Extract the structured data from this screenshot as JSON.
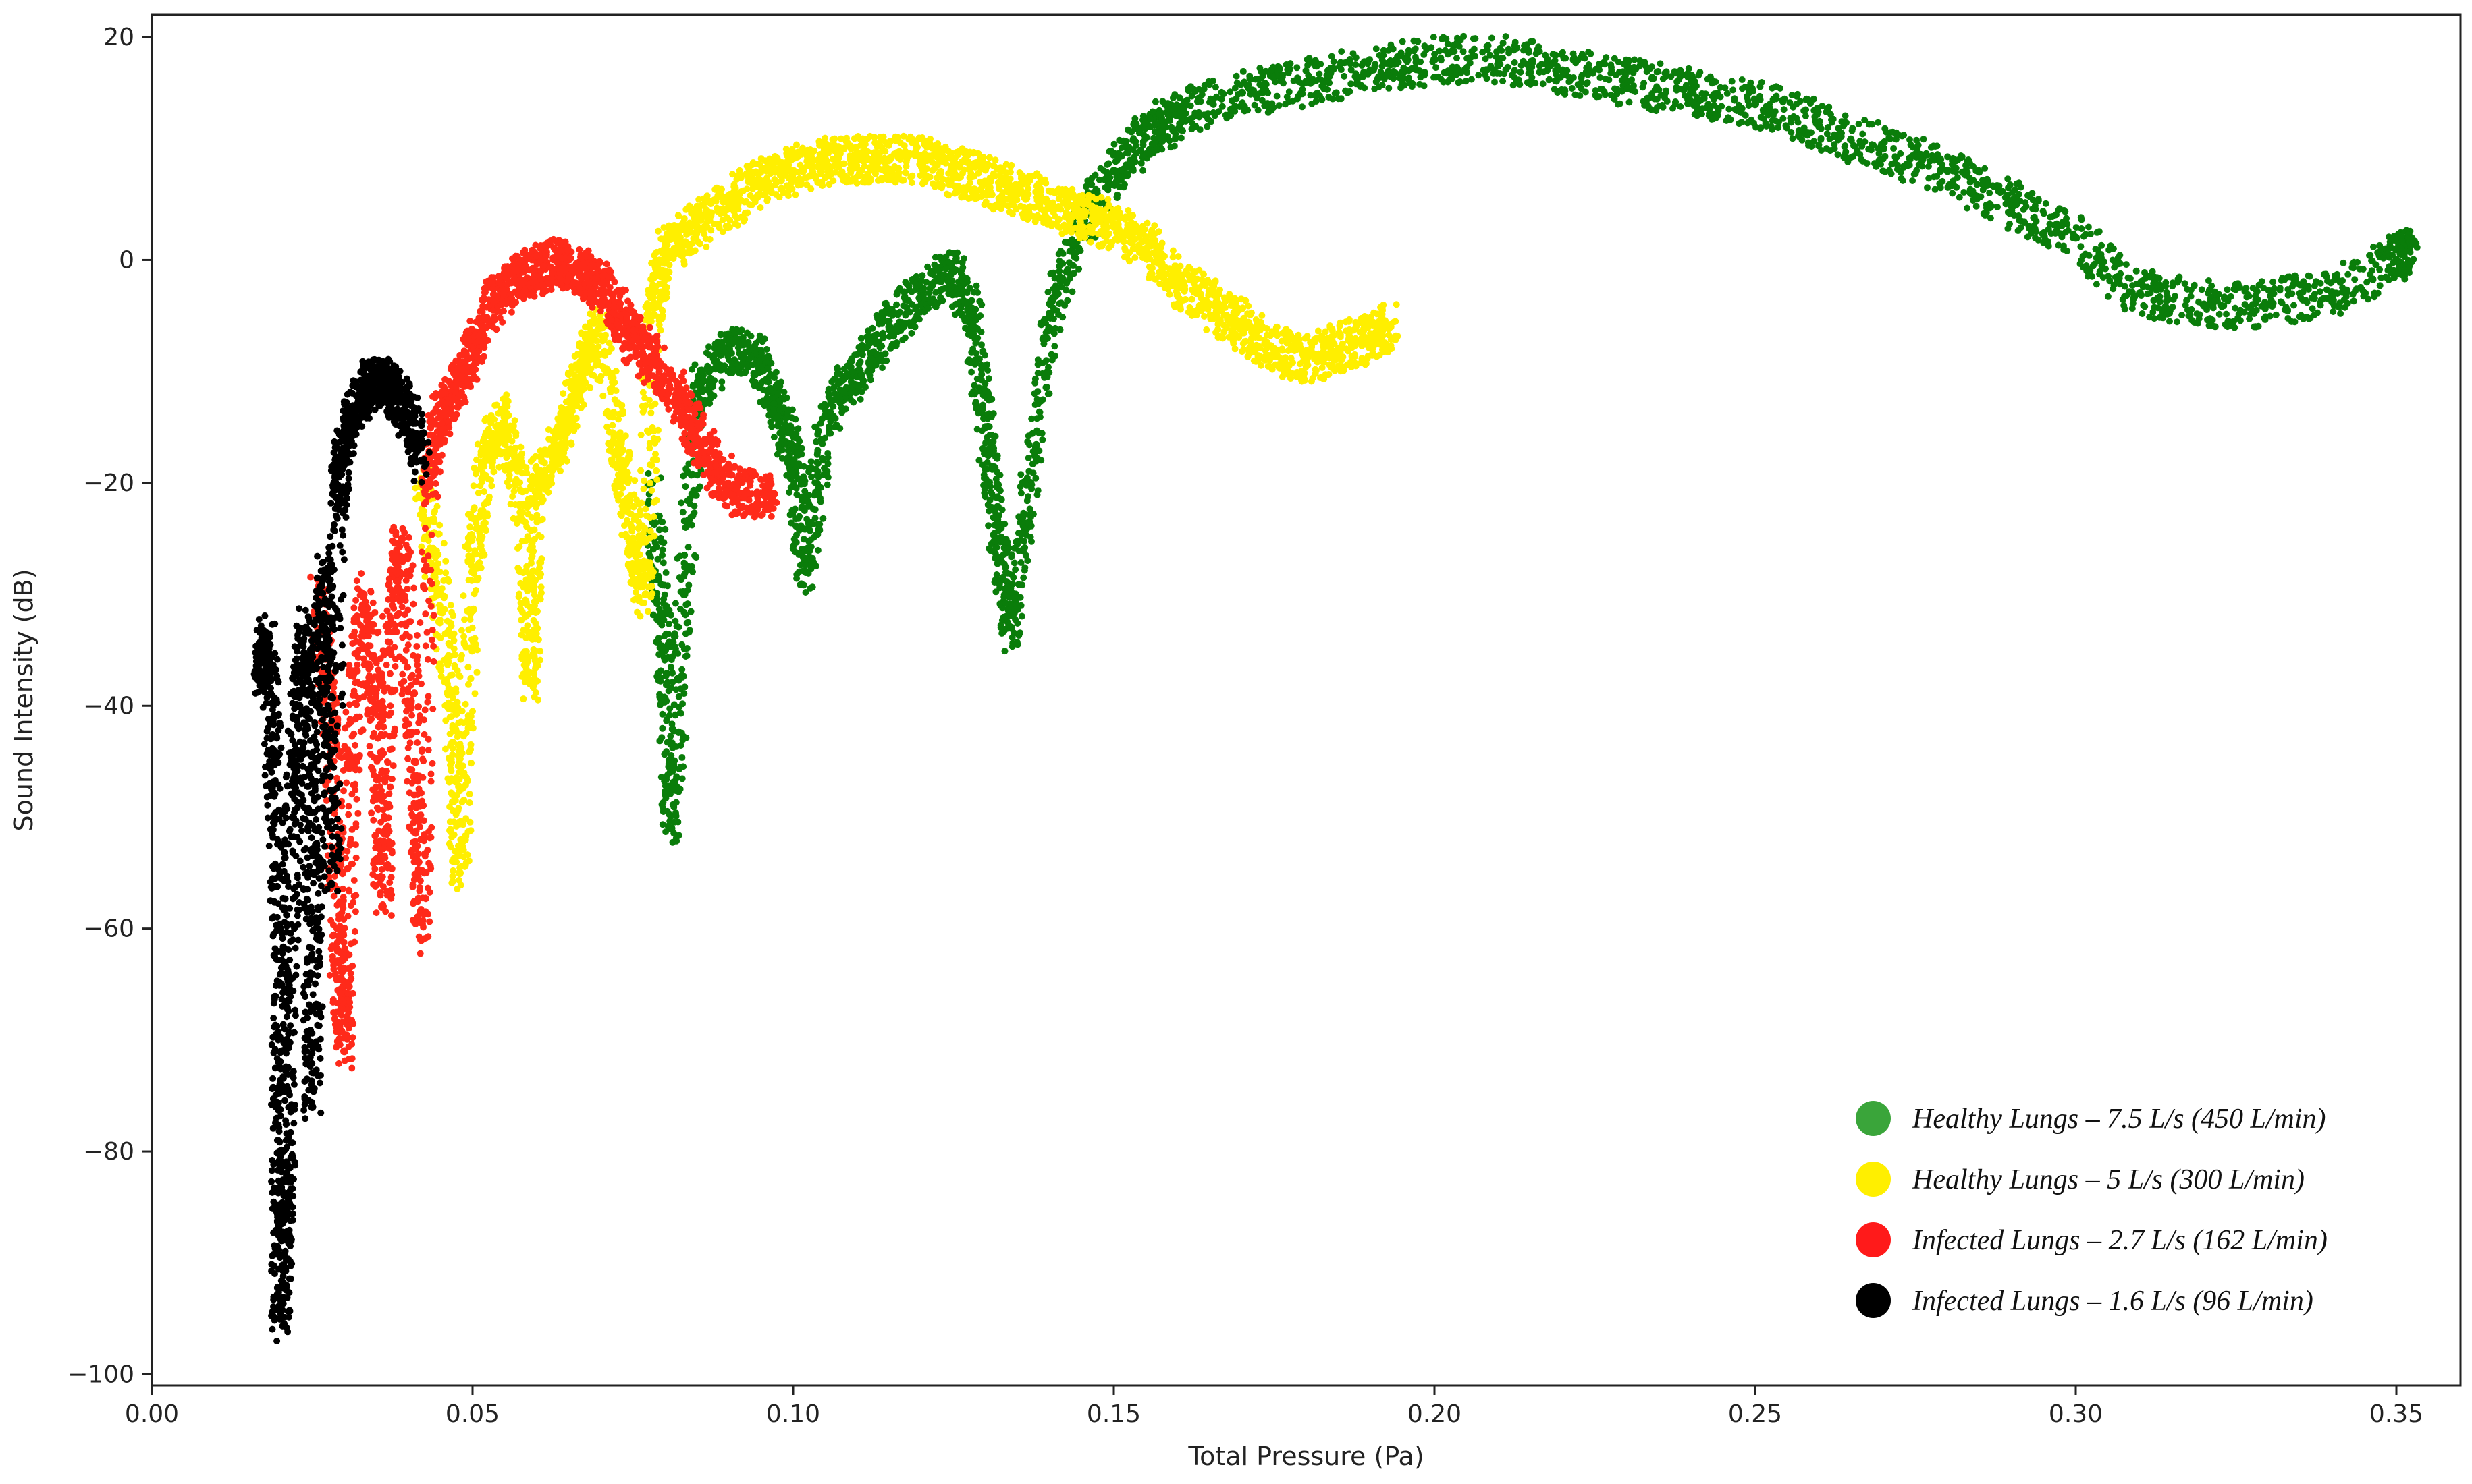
{
  "chart_data": {
    "type": "scatter",
    "title": "",
    "xlabel": "Total Pressure (Pa)",
    "ylabel": "Sound Intensity (dB)",
    "xlim": [
      0.0,
      0.36
    ],
    "ylim": [
      -101,
      22
    ],
    "x_ticks": [
      0.0,
      0.05,
      0.1,
      0.15,
      0.2,
      0.25,
      0.3,
      0.35
    ],
    "x_tick_labels": [
      "0.00",
      "0.05",
      "0.10",
      "0.15",
      "0.20",
      "0.25",
      "0.30",
      "0.35"
    ],
    "y_ticks": [
      20,
      0,
      -20,
      -40,
      -60,
      -80,
      -100
    ],
    "y_tick_labels": [
      "20",
      "0",
      "−20",
      "−40",
      "−60",
      "−80",
      "−100"
    ],
    "grid": false,
    "legend_position": "bottom-right",
    "series": [
      {
        "name": "Healthy Lungs – 7.5 L/s (450 L/min)",
        "color": "#0a7d0a",
        "legend_color": "#3aa53a",
        "points": [
          [
            0.078,
            -20
          ],
          [
            0.08,
            -35
          ],
          [
            0.081,
            -51
          ],
          [
            0.083,
            -30
          ],
          [
            0.085,
            -12
          ],
          [
            0.09,
            -8
          ],
          [
            0.095,
            -9
          ],
          [
            0.098,
            -14
          ],
          [
            0.1,
            -18
          ],
          [
            0.102,
            -28
          ],
          [
            0.105,
            -14
          ],
          [
            0.11,
            -10
          ],
          [
            0.115,
            -6
          ],
          [
            0.12,
            -3
          ],
          [
            0.125,
            -1
          ],
          [
            0.128,
            -5
          ],
          [
            0.13,
            -15
          ],
          [
            0.132,
            -25
          ],
          [
            0.134,
            -33
          ],
          [
            0.137,
            -20
          ],
          [
            0.14,
            -5
          ],
          [
            0.145,
            3
          ],
          [
            0.15,
            8
          ],
          [
            0.155,
            11
          ],
          [
            0.16,
            13
          ],
          [
            0.17,
            15
          ],
          [
            0.18,
            16
          ],
          [
            0.19,
            17
          ],
          [
            0.2,
            18
          ],
          [
            0.21,
            18
          ],
          [
            0.22,
            17
          ],
          [
            0.23,
            16
          ],
          [
            0.24,
            15
          ],
          [
            0.25,
            14
          ],
          [
            0.26,
            12
          ],
          [
            0.27,
            10
          ],
          [
            0.28,
            8
          ],
          [
            0.29,
            5
          ],
          [
            0.3,
            2
          ],
          [
            0.31,
            -3
          ],
          [
            0.32,
            -4
          ],
          [
            0.33,
            -4
          ],
          [
            0.34,
            -3
          ],
          [
            0.35,
            0
          ],
          [
            0.352,
            1
          ]
        ]
      },
      {
        "name": "Healthy Lungs – 5 L/s (300 L/min)",
        "color": "#ffef00",
        "legend_color": "#ffef00",
        "points": [
          [
            0.042,
            -20
          ],
          [
            0.045,
            -30
          ],
          [
            0.047,
            -42
          ],
          [
            0.048,
            -55
          ],
          [
            0.05,
            -28
          ],
          [
            0.052,
            -18
          ],
          [
            0.055,
            -14
          ],
          [
            0.058,
            -22
          ],
          [
            0.059,
            -38
          ],
          [
            0.06,
            -20
          ],
          [
            0.063,
            -17
          ],
          [
            0.065,
            -14
          ],
          [
            0.067,
            -10
          ],
          [
            0.07,
            -6
          ],
          [
            0.073,
            -18
          ],
          [
            0.075,
            -25
          ],
          [
            0.077,
            -30
          ],
          [
            0.078,
            -5
          ],
          [
            0.08,
            1
          ],
          [
            0.085,
            3
          ],
          [
            0.09,
            5
          ],
          [
            0.095,
            7
          ],
          [
            0.1,
            8
          ],
          [
            0.105,
            9
          ],
          [
            0.11,
            9
          ],
          [
            0.115,
            9
          ],
          [
            0.12,
            9
          ],
          [
            0.125,
            8
          ],
          [
            0.13,
            7
          ],
          [
            0.135,
            6
          ],
          [
            0.14,
            5
          ],
          [
            0.145,
            4
          ],
          [
            0.15,
            3
          ],
          [
            0.155,
            1
          ],
          [
            0.16,
            -2
          ],
          [
            0.165,
            -4
          ],
          [
            0.17,
            -6
          ],
          [
            0.175,
            -8
          ],
          [
            0.18,
            -9
          ],
          [
            0.185,
            -8
          ],
          [
            0.19,
            -7
          ],
          [
            0.193,
            -6
          ]
        ]
      },
      {
        "name": "Infected Lungs – 2.7 L/s (162 L/min)",
        "color": "#ff2a1a",
        "legend_color": "#ff1a1a",
        "points": [
          [
            0.026,
            -30
          ],
          [
            0.028,
            -42
          ],
          [
            0.029,
            -62
          ],
          [
            0.03,
            -71
          ],
          [
            0.031,
            -45
          ],
          [
            0.033,
            -30
          ],
          [
            0.035,
            -40
          ],
          [
            0.036,
            -58
          ],
          [
            0.037,
            -35
          ],
          [
            0.039,
            -25
          ],
          [
            0.041,
            -45
          ],
          [
            0.042,
            -61
          ],
          [
            0.043,
            -20
          ],
          [
            0.045,
            -14
          ],
          [
            0.048,
            -11
          ],
          [
            0.05,
            -8
          ],
          [
            0.053,
            -4
          ],
          [
            0.056,
            -2
          ],
          [
            0.06,
            -1
          ],
          [
            0.063,
            0
          ],
          [
            0.066,
            -1
          ],
          [
            0.069,
            -2
          ],
          [
            0.072,
            -4
          ],
          [
            0.075,
            -7
          ],
          [
            0.078,
            -9
          ],
          [
            0.082,
            -12
          ],
          [
            0.085,
            -16
          ],
          [
            0.088,
            -19
          ],
          [
            0.092,
            -21
          ],
          [
            0.097,
            -21
          ]
        ]
      },
      {
        "name": "Infected Lungs – 1.6 L/s (96 L/min)",
        "color": "#000000",
        "legend_color": "#000000",
        "points": [
          [
            0.017,
            -37
          ],
          [
            0.018,
            -34
          ],
          [
            0.019,
            -45
          ],
          [
            0.02,
            -60
          ],
          [
            0.02,
            -80
          ],
          [
            0.02,
            -95
          ],
          [
            0.021,
            -85
          ],
          [
            0.021,
            -70
          ],
          [
            0.022,
            -50
          ],
          [
            0.023,
            -40
          ],
          [
            0.024,
            -33
          ],
          [
            0.025,
            -55
          ],
          [
            0.025,
            -76
          ],
          [
            0.026,
            -40
          ],
          [
            0.027,
            -28
          ],
          [
            0.028,
            -56
          ],
          [
            0.029,
            -22
          ],
          [
            0.03,
            -17
          ],
          [
            0.032,
            -13
          ],
          [
            0.034,
            -11
          ],
          [
            0.036,
            -11
          ],
          [
            0.038,
            -12
          ],
          [
            0.04,
            -14
          ],
          [
            0.042,
            -18
          ]
        ]
      }
    ]
  }
}
